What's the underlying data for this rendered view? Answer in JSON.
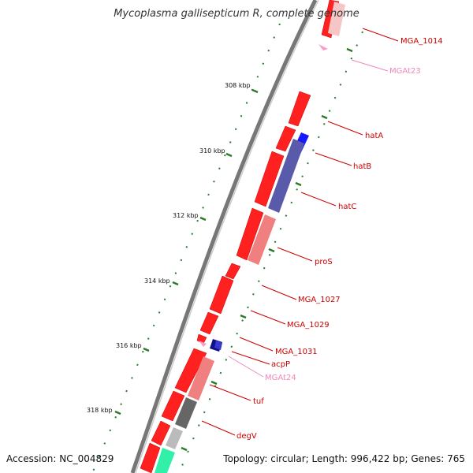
{
  "title": "Mycoplasma gallisepticum R, complete genome",
  "footer": {
    "accession": "Accession: NC_004829",
    "summary": "Topology: circular; Length: 996,422 bp; Genes: 765"
  },
  "colors": {
    "cds": "#ff0000",
    "trna": "#ff99cc",
    "label_cds": "#cc0000",
    "label_trna": "#ee88bb",
    "backbone": "#888888",
    "ticks": "#2a7a2a"
  },
  "tick_labels": [
    "308 kbp",
    "310 kbp",
    "312 kbp",
    "314 kbp",
    "316 kbp",
    "318 kbp"
  ],
  "gene_labels": [
    {
      "text": "MGA_1014",
      "type": "cds"
    },
    {
      "text": "MGAt23",
      "type": "trna"
    },
    {
      "text": "hatA",
      "type": "cds"
    },
    {
      "text": "hatB",
      "type": "cds"
    },
    {
      "text": "hatC",
      "type": "cds"
    },
    {
      "text": "proS",
      "type": "cds"
    },
    {
      "text": "MGA_1027",
      "type": "cds"
    },
    {
      "text": "MGA_1029",
      "type": "cds"
    },
    {
      "text": "MGA_1031",
      "type": "cds"
    },
    {
      "text": "acpP",
      "type": "cds"
    },
    {
      "text": "MGAt24",
      "type": "trna"
    },
    {
      "text": "tuf",
      "type": "cds"
    },
    {
      "text": "degV",
      "type": "cds"
    }
  ]
}
